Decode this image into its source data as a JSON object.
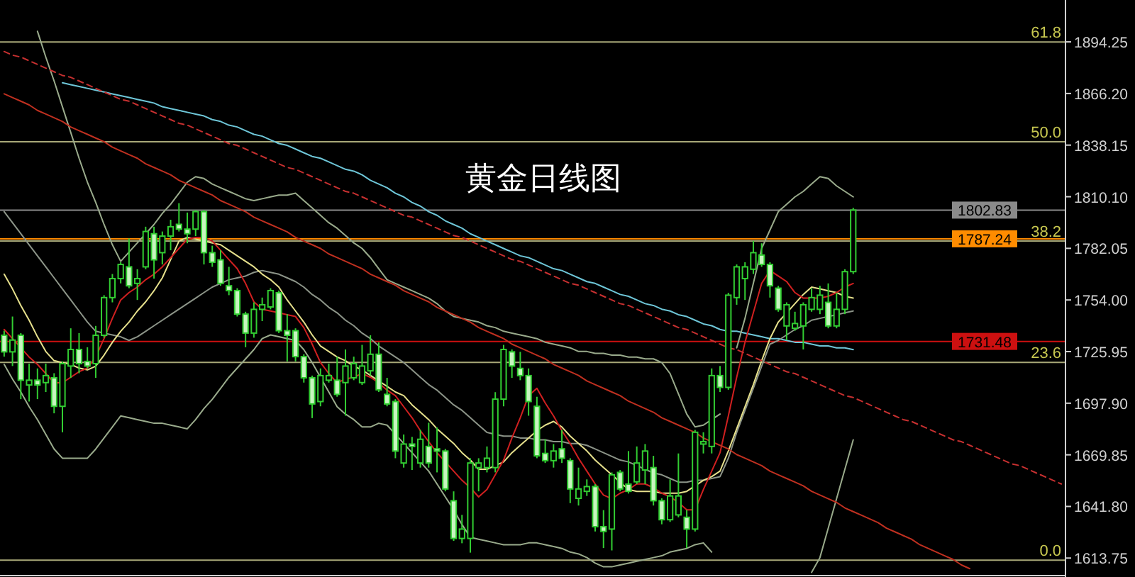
{
  "chart_data": {
    "type": "candlestick",
    "title": "黄金日线图",
    "categories": [
      null,
      null,
      null,
      null,
      null,
      null,
      null,
      null,
      null,
      null,
      null,
      null,
      null,
      null,
      null,
      null,
      null,
      null,
      null,
      null,
      null,
      null,
      null,
      null,
      null,
      null,
      null,
      null,
      null,
      null,
      null,
      null,
      null,
      null,
      null,
      null,
      null,
      null,
      null,
      null,
      null,
      null,
      null,
      null,
      null,
      null,
      null,
      null,
      null,
      null,
      null,
      null,
      null,
      null,
      null,
      null,
      null,
      null,
      null,
      null,
      null,
      null,
      null,
      null,
      null,
      null,
      null,
      null,
      null,
      null,
      null,
      null,
      null,
      null,
      null,
      null,
      null,
      null,
      null,
      null,
      null,
      null,
      null,
      null,
      null,
      null,
      null,
      null,
      null,
      null,
      null,
      null,
      null,
      null,
      null,
      null,
      null,
      null,
      null,
      null,
      null,
      null,
      null,
      null,
      null,
      null,
      null,
      null,
      null,
      null,
      null,
      null,
      null,
      null,
      null,
      null,
      null,
      null,
      null,
      null,
      null,
      null,
      null,
      null,
      null,
      null,
      null,
      null
    ],
    "ohlc": [
      [
        1734.8,
        1737.3,
        1723.2,
        1725.8
      ],
      [
        1725.8,
        1745.0,
        1718.1,
        1732.2
      ],
      [
        1734.8,
        1736.0,
        1700.1,
        1710.4
      ],
      [
        1707.8,
        1719.4,
        1698.8,
        1710.4
      ],
      [
        1710.4,
        1716.8,
        1700.1,
        1707.8
      ],
      [
        1709.1,
        1719.4,
        1704.0,
        1712.9
      ],
      [
        1711.7,
        1714.2,
        1692.4,
        1696.2
      ],
      [
        1696.2,
        1720.6,
        1682.1,
        1719.4
      ],
      [
        1718.1,
        1738.6,
        1711.7,
        1727.1
      ],
      [
        1727.1,
        1736.0,
        1714.2,
        1719.4
      ],
      [
        1720.6,
        1728.3,
        1716.8,
        1718.1
      ],
      [
        1719.4,
        1739.9,
        1711.7,
        1734.8
      ],
      [
        1734.8,
        1756.6,
        1733.5,
        1755.3
      ],
      [
        1755.3,
        1768.1,
        1752.7,
        1765.6
      ],
      [
        1765.6,
        1774.5,
        1763.0,
        1773.3
      ],
      [
        1772.0,
        1787.4,
        1760.4,
        1761.7
      ],
      [
        1763.0,
        1770.7,
        1754.0,
        1765.6
      ],
      [
        1772.0,
        1793.8,
        1770.7,
        1791.2
      ],
      [
        1790.0,
        1793.8,
        1765.6,
        1775.8
      ],
      [
        1779.7,
        1791.2,
        1773.3,
        1788.7
      ],
      [
        1788.7,
        1797.6,
        1781.0,
        1793.8
      ],
      [
        1795.1,
        1806.6,
        1791.2,
        1792.5
      ],
      [
        1792.5,
        1801.5,
        1784.8,
        1790.0
      ],
      [
        1792.5,
        1802.8,
        1788.7,
        1802.0
      ],
      [
        1802.0,
        1802.8,
        1773.3,
        1779.7
      ],
      [
        1779.7,
        1783.5,
        1772.0,
        1774.5
      ],
      [
        1775.8,
        1781.0,
        1761.7,
        1763.0
      ],
      [
        1761.7,
        1772.0,
        1756.6,
        1759.1
      ],
      [
        1759.1,
        1760.4,
        1745.0,
        1746.3
      ],
      [
        1746.3,
        1747.6,
        1728.3,
        1736.0
      ],
      [
        1736.0,
        1752.7,
        1733.5,
        1748.9
      ],
      [
        1748.9,
        1755.3,
        1742.5,
        1751.4
      ],
      [
        1750.2,
        1760.4,
        1748.9,
        1759.1
      ],
      [
        1757.9,
        1759.1,
        1736.0,
        1737.3
      ],
      [
        1737.3,
        1746.3,
        1720.6,
        1734.8
      ],
      [
        1737.3,
        1738.6,
        1720.6,
        1723.2
      ],
      [
        1723.2,
        1724.5,
        1709.1,
        1711.7
      ],
      [
        1711.7,
        1712.9,
        1689.8,
        1697.5
      ],
      [
        1698.8,
        1716.8,
        1696.2,
        1712.9
      ],
      [
        1710.4,
        1719.4,
        1709.1,
        1712.9
      ],
      [
        1710.4,
        1723.2,
        1701.4,
        1702.7
      ],
      [
        1709.1,
        1727.1,
        1691.1,
        1718.1
      ],
      [
        1711.7,
        1723.2,
        1710.4,
        1719.4
      ],
      [
        1709.1,
        1729.6,
        1707.8,
        1718.1
      ],
      [
        1715.5,
        1734.8,
        1712.9,
        1724.5
      ],
      [
        1724.5,
        1730.9,
        1704.0,
        1705.2
      ],
      [
        1702.7,
        1711.7,
        1696.2,
        1697.5
      ],
      [
        1698.8,
        1700.1,
        1668.0,
        1671.9
      ],
      [
        1665.4,
        1680.9,
        1662.9,
        1675.7
      ],
      [
        1675.7,
        1679.6,
        1661.6,
        1674.4
      ],
      [
        1665.4,
        1683.4,
        1662.9,
        1678.3
      ],
      [
        1674.4,
        1687.3,
        1662.9,
        1665.4
      ],
      [
        1673.1,
        1684.7,
        1660.3,
        1671.9
      ],
      [
        1671.9,
        1673.1,
        1650.0,
        1651.3
      ],
      [
        1644.9,
        1650.0,
        1623.1,
        1624.4
      ],
      [
        1624.4,
        1637.2,
        1621.8,
        1629.5
      ],
      [
        1624.4,
        1668.0,
        1616.7,
        1665.4
      ],
      [
        1662.9,
        1668.0,
        1650.0,
        1665.4
      ],
      [
        1662.9,
        1674.4,
        1660.3,
        1668.0
      ],
      [
        1662.9,
        1703.9,
        1660.3,
        1700.1
      ],
      [
        1700.1,
        1729.6,
        1696.2,
        1727.1
      ],
      [
        1725.8,
        1727.1,
        1711.7,
        1718.1
      ],
      [
        1716.8,
        1725.8,
        1710.4,
        1712.9
      ],
      [
        1712.9,
        1716.8,
        1691.1,
        1698.8
      ],
      [
        1696.2,
        1701.4,
        1668.0,
        1669.3
      ],
      [
        1670.6,
        1678.3,
        1665.4,
        1666.7
      ],
      [
        1666.7,
        1675.7,
        1662.9,
        1671.9
      ],
      [
        1673.1,
        1683.4,
        1665.4,
        1668.0
      ],
      [
        1666.7,
        1668.0,
        1643.6,
        1651.3
      ],
      [
        1646.2,
        1662.9,
        1642.3,
        1651.3
      ],
      [
        1650.0,
        1656.5,
        1647.5,
        1652.6
      ],
      [
        1652.6,
        1653.9,
        1628.2,
        1630.8
      ],
      [
        1630.8,
        1639.8,
        1619.2,
        1628.2
      ],
      [
        1629.5,
        1660.3,
        1617.9,
        1659.0
      ],
      [
        1660.3,
        1661.6,
        1650.0,
        1651.3
      ],
      [
        1653.9,
        1671.9,
        1648.8,
        1650.0
      ],
      [
        1655.2,
        1674.4,
        1653.9,
        1665.4
      ],
      [
        1661.6,
        1675.7,
        1653.9,
        1671.9
      ],
      [
        1662.9,
        1669.3,
        1642.3,
        1644.9
      ],
      [
        1644.9,
        1646.2,
        1632.1,
        1634.6
      ],
      [
        1634.6,
        1656.5,
        1633.4,
        1647.5
      ],
      [
        1637.2,
        1670.6,
        1635.9,
        1647.5
      ],
      [
        1635.9,
        1639.8,
        1619.2,
        1629.5
      ],
      [
        1629.5,
        1683.4,
        1628.2,
        1682.1
      ],
      [
        1675.7,
        1682.1,
        1670.6,
        1677.0
      ],
      [
        1674.4,
        1716.8,
        1670.6,
        1712.9
      ],
      [
        1712.9,
        1718.1,
        1704.0,
        1706.5
      ],
      [
        1706.5,
        1757.9,
        1705.2,
        1756.6
      ],
      [
        1755.3,
        1773.3,
        1751.4,
        1772.0
      ],
      [
        1765.6,
        1774.5,
        1754.0,
        1772.0
      ],
      [
        1770.7,
        1786.1,
        1768.1,
        1779.7
      ],
      [
        1778.4,
        1784.8,
        1772.0,
        1773.3
      ],
      [
        1773.3,
        1774.5,
        1755.3,
        1761.7
      ],
      [
        1760.4,
        1761.7,
        1747.6,
        1748.9
      ],
      [
        1739.9,
        1752.7,
        1732.2,
        1751.4
      ],
      [
        1738.6,
        1747.6,
        1737.3,
        1741.2
      ],
      [
        1739.9,
        1752.7,
        1727.1,
        1751.4
      ],
      [
        1748.9,
        1760.4,
        1747.6,
        1755.3
      ],
      [
        1748.9,
        1761.7,
        1746.3,
        1756.6
      ],
      [
        1752.7,
        1763.0,
        1738.6,
        1739.9
      ],
      [
        1739.9,
        1757.9,
        1738.6,
        1748.9
      ],
      [
        1748.9,
        1770.7,
        1746.3,
        1769.4
      ],
      [
        1769.4,
        1804.1,
        1768.1,
        1802.83
      ],
      null,
      null,
      null,
      null,
      null,
      null,
      null,
      null,
      null,
      null,
      null,
      null,
      null,
      null,
      null,
      null,
      null,
      null,
      null,
      null,
      null,
      null,
      null,
      null,
      null
    ],
    "series": [
      {
        "type": "line",
        "color": "#6ec6d8",
        "values": [
          null,
          null,
          null,
          null,
          null,
          null,
          null,
          1872,
          1871,
          1870,
          1869,
          1868,
          1867,
          1866,
          1865,
          1864,
          1863,
          1862,
          1861,
          1859,
          1858,
          1857,
          1856,
          1855,
          1854,
          1852,
          1851,
          1849,
          1848,
          1846,
          1844,
          1843,
          1841,
          1839,
          1838,
          1836,
          1834,
          1832,
          1831,
          1829,
          1827,
          1825,
          1824,
          1822,
          1819,
          1817,
          1815,
          1812,
          1810,
          1807,
          1805,
          1802,
          1800,
          1797,
          1795,
          1793,
          1790,
          1788,
          1786,
          1784,
          1782,
          1780,
          1778,
          1777,
          1775,
          1773,
          1771,
          1770,
          1768,
          1766,
          1764,
          1763,
          1761,
          1759,
          1757,
          1756,
          1754,
          1752,
          1751,
          1749,
          1748,
          1746,
          1745,
          1743,
          1741,
          1740,
          1738,
          1737,
          1737,
          1736,
          1735,
          1734,
          1733,
          1733,
          1732,
          1731,
          1731,
          1730,
          1729,
          1729,
          1728,
          1728,
          1727,
          null,
          null,
          null,
          null,
          null,
          null,
          null,
          null,
          null,
          null,
          null,
          null,
          null,
          null,
          null,
          null,
          null,
          null,
          null,
          null,
          null,
          null,
          null,
          null,
          null
        ]
      },
      {
        "type": "line",
        "color": "#9aab8c",
        "values": [
          null,
          null,
          null,
          null,
          1900,
          1886,
          1873,
          1859,
          1845,
          1831,
          1818,
          1807,
          1795,
          1784,
          1775,
          1780,
          1785,
          1790,
          1795,
          1801,
          1806,
          1812,
          1818,
          1821,
          1820,
          1817,
          1815,
          1813,
          1811,
          1809,
          1808,
          1809,
          1810,
          1811,
          1811,
          1812,
          1808,
          1804,
          1800,
          1796,
          1793,
          1789,
          1785,
          1782,
          1777,
          1771,
          1765,
          1763,
          1761,
          1759,
          1757,
          1755,
          1752,
          1748,
          1745,
          1744,
          1743,
          1742,
          1740,
          1739,
          1737,
          1736,
          1735,
          1734,
          1733,
          1731,
          1730,
          1729,
          1728,
          1726,
          1726,
          1725,
          1725,
          1724,
          1724,
          1723,
          1723,
          1722,
          1722,
          1720,
          1714,
          1703,
          1692,
          1685,
          1686,
          1689,
          1692,
          null,
          1728,
          1744,
          1763,
          1782,
          1792,
          1802,
          1806,
          1810,
          1813,
          1817,
          1821,
          1820,
          1816,
          1813,
          1810,
          null,
          null,
          null,
          null,
          null,
          null,
          null,
          null,
          null,
          null,
          null,
          null,
          null,
          null,
          null,
          null,
          null,
          null,
          null,
          null,
          null,
          null,
          null,
          null,
          null
        ]
      },
      {
        "type": "line",
        "color": "#8c9488",
        "values": [
          1802,
          1796,
          1790,
          1784,
          1778,
          1772,
          1766,
          1760,
          1754,
          1748,
          1742,
          1737,
          1736,
          1735,
          1734,
          1732,
          1734,
          1737,
          1740,
          1743,
          1746,
          1749,
          1752,
          1755,
          1758,
          1761,
          1763,
          1765,
          1766,
          1767,
          1769,
          1770,
          1769,
          1768,
          1766,
          1764,
          1761,
          1757,
          1754,
          1750,
          1747,
          1743,
          1740,
          1736,
          1733,
          1729,
          1726,
          1723,
          1720,
          1716,
          1712,
          1708,
          1705,
          1701,
          1697,
          1694,
          1690,
          1686,
          1682,
          1681,
          1680,
          1680,
          1679,
          1679,
          1678,
          1678,
          1677,
          1677,
          1676,
          1676,
          1675,
          1673,
          1671,
          1669,
          1667,
          1666,
          1664,
          1662,
          1660,
          1659,
          1657,
          1655,
          1655,
          1656,
          1656,
          1657,
          1658,
          1668,
          1682,
          1694,
          1706,
          1718,
          1730,
          1732,
          1735,
          1738,
          1740,
          1743,
          1744,
          1745,
          1746,
          1747,
          1748,
          null,
          null,
          null,
          null,
          null,
          null,
          null,
          null,
          null,
          null,
          null,
          null,
          null,
          null,
          null,
          null,
          null,
          null,
          null,
          null,
          null,
          null,
          null,
          null,
          null
        ]
      },
      {
        "type": "line",
        "color": "#9aab8c",
        "values": [
          1719,
          1711,
          1704,
          1696,
          1689,
          1681,
          1673,
          1668,
          1668,
          1668,
          1668,
          1673,
          1679,
          1685,
          1691,
          1690,
          1689,
          1688,
          1687,
          1687,
          1686,
          1685,
          1684,
          1689,
          1695,
          1700,
          1706,
          1712,
          1717,
          1722,
          1727,
          1733,
          1735,
          1734,
          1733,
          1732,
          1727,
          1720,
          1712,
          1704,
          1696,
          1692,
          1689,
          1685,
          1685,
          1687,
          1686,
          1681,
          1676,
          1671,
          1666,
          1661,
          1654,
          1647,
          1640,
          1632,
          1625,
          1624,
          1623,
          1622,
          1621,
          1621,
          1621,
          1622,
          1622,
          1621,
          1620,
          1619,
          1617,
          1616,
          1614,
          1611,
          1609,
          1609,
          1610,
          1611,
          1612,
          1613,
          1614,
          1615,
          1617,
          1618,
          1619,
          1621,
          1622,
          1617,
          null,
          null,
          null,
          null,
          null,
          null,
          null,
          null,
          null,
          null,
          null,
          1606,
          1614,
          1630,
          1646,
          1662,
          1678,
          null,
          null,
          null,
          null,
          null,
          null,
          null,
          null,
          null,
          null,
          null,
          null,
          null,
          null,
          null,
          null,
          null,
          null,
          null,
          null,
          null,
          null,
          null,
          null,
          null
        ]
      },
      {
        "type": "line",
        "color": "#e6e08c",
        "values": [
          1768,
          1760,
          1751,
          1743,
          1734,
          1726,
          1721,
          1720,
          1719,
          1717,
          1716,
          1718,
          1724,
          1731,
          1737,
          1742,
          1748,
          1753,
          1759,
          1766,
          1776,
          1786,
          1788,
          1787,
          1786,
          1785,
          1784,
          1781,
          1778,
          1775,
          1772,
          1768,
          1765,
          1761,
          1754,
          1748,
          1742,
          1735,
          1729,
          1726,
          1723,
          1721,
          1718,
          1716,
          1713,
          1710,
          1707,
          1704,
          1702,
          1697,
          1693,
          1689,
          1684,
          1680,
          1676,
          1671,
          1667,
          1662,
          1662,
          1664,
          1666,
          1671,
          1675,
          1679,
          1683,
          1686,
          1688,
          1685,
          1680,
          1676,
          1672,
          1667,
          1663,
          1659,
          1655,
          1651,
          1650,
          1650,
          1650,
          1649,
          1649,
          1649,
          1650,
          1653,
          1656,
          1658,
          1661,
          1672,
          1684,
          1696,
          1708,
          1721,
          1733,
          1742,
          1747,
          1752,
          1757,
          1761,
          1760,
          1759,
          1758,
          1756,
          1755,
          null,
          null,
          null,
          null,
          null,
          null,
          null,
          null,
          null,
          null,
          null,
          null,
          null,
          null,
          null,
          null,
          null,
          null,
          null,
          null,
          null,
          null,
          null,
          null,
          null
        ]
      },
      {
        "type": "line",
        "color": "#d02020",
        "values": [
          1738,
          1733,
          1728,
          1723,
          1719,
          1714,
          1709,
          1709,
          1712,
          1715,
          1717,
          1723,
          1733,
          1744,
          1754,
          1758,
          1761,
          1765,
          1768,
          1772,
          1777,
          1782,
          1787,
          1788,
          1788,
          1786,
          1781,
          1776,
          1771,
          1763,
          1753,
          1749,
          1748,
          1747,
          1746,
          1745,
          1739,
          1730,
          1720,
          1714,
          1709,
          1711,
          1712,
          1714,
          1712,
          1709,
          1705,
          1702,
          1696,
          1690,
          1683,
          1677,
          1671,
          1666,
          1661,
          1656,
          1652,
          1647,
          1651,
          1659,
          1667,
          1679,
          1690,
          1702,
          1706,
          1698,
          1691,
          1683,
          1676,
          1668,
          1661,
          1654,
          1648,
          1646,
          1649,
          1651,
          1654,
          1654,
          1652,
          1649,
          1647,
          1644,
          1640,
          1640,
          1651,
          1661,
          1671,
          1691,
          1712,
          1731,
          1747,
          1763,
          1770,
          1767,
          1764,
          1758,
          1755,
          1755,
          1755,
          1756,
          1758,
          1761,
          1763,
          null,
          null,
          null,
          null,
          null,
          null,
          null,
          null,
          null,
          null,
          null,
          null,
          null,
          null,
          null,
          null,
          null,
          null,
          null,
          null,
          null,
          null,
          null,
          null,
          null
        ]
      },
      {
        "type": "line",
        "color": "#c03020",
        "values": [
          1866,
          1864,
          1862,
          1860,
          1857,
          1855,
          1853,
          1851,
          1848,
          1846,
          1844,
          1842,
          1840,
          1837,
          1835,
          1833,
          1831,
          1828,
          1826,
          1824,
          1822,
          1819,
          1817,
          1815,
          1813,
          1811,
          1808,
          1806,
          1804,
          1802,
          1799,
          1797,
          1795,
          1793,
          1791,
          1788,
          1786,
          1784,
          1782,
          1779,
          1777,
          1775,
          1773,
          1771,
          1768,
          1766,
          1764,
          1762,
          1759,
          1757,
          1755,
          1753,
          1750,
          1748,
          1746,
          1744,
          1742,
          1739,
          1737,
          1735,
          1733,
          1730,
          1728,
          1726,
          1724,
          1722,
          1719,
          1717,
          1715,
          1713,
          1710,
          1708,
          1706,
          1704,
          1702,
          1699,
          1697,
          1695,
          1693,
          1690,
          1688,
          1686,
          1684,
          1682,
          1679,
          1677,
          1675,
          1673,
          1670,
          1668,
          1666,
          1664,
          1661,
          1659,
          1657,
          1655,
          1653,
          1650,
          1648,
          1646,
          1644,
          1641,
          1639,
          1637,
          1635,
          1633,
          1630,
          1628,
          1626,
          1624,
          1621,
          1619,
          1617,
          1615,
          1613,
          1610,
          1608,
          null,
          null,
          null,
          null,
          null,
          null,
          null,
          null,
          null,
          null,
          null
        ]
      },
      {
        "type": "line",
        "color": "#c83030",
        "line_style": "dashed",
        "values": [
          1889,
          1887,
          1886,
          1884,
          1882,
          1880,
          1878,
          1876,
          1875,
          1873,
          1871,
          1869,
          1867,
          1865,
          1863,
          1862,
          1860,
          1858,
          1856,
          1854,
          1852,
          1850,
          1849,
          1847,
          1845,
          1843,
          1841,
          1839,
          1838,
          1836,
          1834,
          1832,
          1830,
          1828,
          1826,
          1825,
          1823,
          1821,
          1819,
          1817,
          1815,
          1813,
          1812,
          1810,
          1808,
          1806,
          1804,
          1802,
          1800,
          1799,
          1797,
          1795,
          1793,
          1791,
          1789,
          1788,
          1786,
          1784,
          1782,
          1780,
          1778,
          1776,
          1775,
          1773,
          1771,
          1769,
          1767,
          1765,
          1763,
          1762,
          1760,
          1758,
          1756,
          1754,
          1752,
          1751,
          1749,
          1747,
          1745,
          1743,
          1741,
          1739,
          1738,
          1736,
          1734,
          1732,
          1730,
          1728,
          1727,
          1725,
          1723,
          1721,
          1719,
          1717,
          1715,
          1714,
          1712,
          1710,
          1708,
          1706,
          1704,
          1702,
          1701,
          1699,
          1697,
          1695,
          1693,
          1691,
          1689,
          1688,
          1686,
          1684,
          1682,
          1680,
          1678,
          1677,
          1675,
          1673,
          1671,
          1669,
          1667,
          1665,
          1664,
          1662,
          1660,
          1658,
          1656,
          1654
        ]
      }
    ],
    "ylim": [
      1605,
      1917
    ],
    "yticks": [
      1894.25,
      {
        "value": 1866.2,
        "label": "1866.20"
      },
      1838.15,
      {
        "value": 1810.1,
        "label": "1810.10"
      },
      1782.05,
      {
        "value": 1754,
        "label": "1754.00"
      },
      1725.95,
      {
        "value": 1697.9,
        "label": "1697.90"
      },
      1669.85,
      {
        "value": 1641.8,
        "label": "1641.80"
      },
      1613.75
    ],
    "tick_labels": "y",
    "ref_lines": [
      {
        "axis": "y",
        "value": 1894.2,
        "color": "#a8a878"
      },
      {
        "axis": "y",
        "value": 1840.0,
        "color": "#a8a878"
      },
      {
        "axis": "y",
        "value": 1802.83,
        "color": "#8a8a8a"
      },
      {
        "axis": "y",
        "value": 1786.0,
        "color": "#a8a878"
      },
      {
        "axis": "y",
        "value": 1787.24,
        "color": "#ff8c00"
      },
      {
        "axis": "y",
        "value": 1731.48,
        "color": "#cc1010"
      },
      {
        "axis": "y",
        "value": 1720.1,
        "color": "#a8a878"
      },
      {
        "axis": "y",
        "value": 1612.6,
        "color": "#a8a878"
      }
    ],
    "annotations": [
      {
        "text": "61.8",
        "y": 1894.2
      },
      {
        "text": "50.0",
        "y": 1840.0
      },
      {
        "text": "38.2",
        "y": 1786.0
      },
      {
        "text": "23.6",
        "y": 1720.1
      },
      {
        "text": "0.0",
        "y": 1612.6
      },
      {
        "text": "1802.83",
        "y": 1802.83
      },
      {
        "text": "1787.24",
        "y": 1787.24
      },
      {
        "text": "1731.48",
        "y": 1731.48
      }
    ]
  }
}
